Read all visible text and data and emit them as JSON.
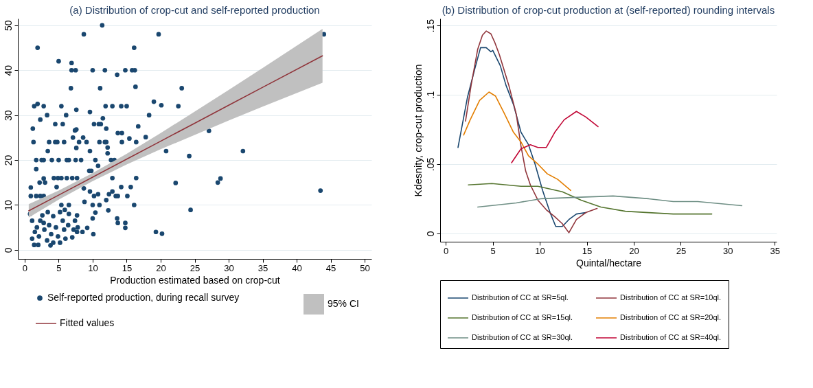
{
  "chart_data": [
    {
      "type": "scatter",
      "title": "(a) Distribution of crop-cut and self-reported production",
      "xlabel": "Production estimated based on crop-cut",
      "xlim": [
        -1,
        51
      ],
      "xticks": [
        0,
        5,
        10,
        15,
        20,
        25,
        30,
        35,
        40,
        45,
        50
      ],
      "ylim": [
        -2,
        51.5
      ],
      "yticks": [
        0,
        10,
        20,
        30,
        40,
        50
      ],
      "grid": "y",
      "legend": "bottom",
      "series": [
        {
          "name": "Self-reported production, during recall survey",
          "color": "#1a476f",
          "marker": "circle",
          "x": [
            1.9,
            8.7,
            11.4,
            19.7,
            5.0,
            6.9,
            6.9,
            7.5,
            10,
            11.8,
            14.8,
            15.8,
            16.2,
            13.6,
            16.1,
            6.8,
            11.1,
            16.3,
            23.1,
            1.9,
            1.4,
            2.8,
            5.4,
            11.9,
            12.9,
            14.2,
            15,
            19,
            20.1,
            22.6,
            2.3,
            3.3,
            6.1,
            7.6,
            9.6,
            11.5,
            18.3,
            1.2,
            1.3,
            4.5,
            5.6,
            7.4,
            7.6,
            10.2,
            10.9,
            11.2,
            12,
            13.7,
            14.3,
            16.7,
            17.8,
            20.8,
            3.6,
            4.5,
            4.8,
            5.8,
            7.1,
            8,
            8.6,
            9.1,
            11,
            11.8,
            12,
            14.3,
            15.4,
            16.4,
            12.2,
            12.2,
            3.4,
            9.6,
            1.7,
            2.5,
            2.8,
            1.7,
            4,
            5,
            6.2,
            6.5,
            7.5,
            8.3,
            10.4,
            10.8,
            12.7,
            13.2,
            9.5,
            9.8,
            7.6,
            2.8,
            3,
            2.2,
            4.3,
            4.9,
            5.4,
            6.2,
            7,
            7.7,
            12.9,
            16.4,
            22.2,
            0.9,
            0.9,
            1.7,
            2.3,
            2.8,
            4.7,
            8.7,
            9.6,
            10.2,
            10.8,
            12,
            12.4,
            12.9,
            13.4,
            13.7,
            14.2,
            15.1,
            15.6,
            16.1,
            11,
            5.4,
            6.5,
            8.8,
            10,
            12.3,
            10.4,
            10,
            13.6,
            13.7,
            14.8,
            14.8,
            10.1,
            19.3,
            20.2,
            9.2,
            8.5,
            0.8,
            1.1,
            1.5,
            1.1,
            1.4,
            2,
            1.8,
            2.3,
            2.6,
            2.9,
            3.3,
            3.9,
            3.6,
            4.2,
            4.6,
            4.9,
            3.8,
            5.6,
            5.8,
            5.2,
            6,
            6.4,
            6.5,
            7.2,
            7.4,
            7,
            7.7,
            7.8,
            7.7,
            3.4,
            5.2,
            2.1,
            2.8,
            4.2,
            5.9,
            44,
            27.1,
            24.2,
            32.1,
            28.4,
            28.8,
            24.4,
            43.5
          ],
          "values": [
            45,
            48,
            50,
            48,
            42,
            41.6,
            40,
            40,
            40,
            40,
            40,
            40,
            40,
            39,
            45,
            36,
            36,
            36.3,
            36,
            32.5,
            32,
            32,
            32,
            32,
            32,
            32,
            32,
            33,
            32.2,
            32,
            29,
            30,
            30,
            31.2,
            30.7,
            29.3,
            30,
            27,
            24,
            28,
            28,
            26.6,
            26.8,
            28,
            28,
            28,
            27,
            26,
            26,
            27.5,
            25.1,
            22,
            24,
            24,
            24,
            24,
            25,
            24,
            25,
            24,
            24,
            24,
            24,
            24,
            24.8,
            24,
            21.5,
            22.8,
            22,
            22,
            20,
            20,
            20,
            18,
            20,
            20,
            20,
            20,
            20,
            20,
            20,
            18.7,
            20,
            20,
            17.6,
            17.6,
            22.7,
            15.9,
            15,
            15,
            16,
            16,
            16,
            16,
            16,
            16,
            16,
            16,
            14.9,
            13.9,
            12,
            12,
            12,
            12,
            14,
            13.7,
            13,
            12,
            12.4,
            11.1,
            12.4,
            13,
            12,
            12,
            14,
            12,
            14,
            10,
            10,
            10,
            10,
            10.7,
            10,
            8.8,
            8.3,
            7,
            7,
            6,
            6,
            4.9,
            3.5,
            4,
            3.6,
            4.9,
            4,
            8,
            6.5,
            4,
            2.5,
            1.1,
            1.1,
            5,
            6.5,
            7.7,
            4.5,
            2.1,
            3.5,
            5.5,
            7.5,
            5,
            3,
            1,
            6.5,
            4.5,
            1.6,
            2.5,
            5.5,
            8,
            4.5,
            6.5,
            2.8,
            7.7,
            5,
            4,
            8.4,
            8.4,
            3,
            6,
            1.6,
            8.9,
            48,
            26.5,
            20.9,
            22,
            15,
            15.9,
            8.9,
            13.2
          ]
        },
        {
          "name": "Fitted values",
          "type": "line",
          "color": "#90353b",
          "marker": "none",
          "x": [
            0.6,
            5,
            10,
            15,
            20,
            25,
            30,
            35,
            43.8
          ],
          "values": [
            8.7,
            12.2,
            16.2,
            20.2,
            24.2,
            28.2,
            32.2,
            36.2,
            43.2
          ],
          "lower": [
            7.2,
            11.2,
            15.3,
            19.0,
            22.4,
            25.6,
            28.8,
            31.9,
            37.2
          ],
          "upper": [
            10.2,
            13.2,
            17.1,
            21.4,
            26.0,
            30.8,
            35.6,
            40.5,
            49.2
          ]
        }
      ],
      "annotations": [
        "95% CI"
      ]
    },
    {
      "type": "line",
      "title": "(b) Distribution of crop-cut production at (self-reported) rounding intervals",
      "xlabel": "Quintal/hectare",
      "ylabel": "Kdesnity, crop-cut production",
      "xlim": [
        -0.6,
        35.2
      ],
      "xticks": [
        0,
        5,
        10,
        15,
        20,
        25,
        30,
        35
      ],
      "ylim": [
        -0.006,
        0.155
      ],
      "yticks": [
        {
          "value": 0,
          "label": "0"
        },
        {
          "value": 0.05,
          "label": ".05"
        },
        {
          "value": 0.1,
          "label": ".1"
        },
        {
          "value": 0.15,
          "label": ".15"
        }
      ],
      "grid": "y",
      "legend": "bottom",
      "line_style": "solid",
      "series": [
        {
          "name": "Distribution of CC at SR=5ql.",
          "color": "#1a476f",
          "x": [
            1.3,
            2.3,
            3.1,
            3.7,
            4.3,
            4.8,
            5.0,
            5.8,
            6.4,
            7.2,
            8.0,
            8.8,
            9.5,
            10.3,
            11.1,
            11.7,
            12.4,
            13.1,
            13.9,
            14.9
          ],
          "values": [
            0.062,
            0.098,
            0.119,
            0.134,
            0.134,
            0.131,
            0.132,
            0.121,
            0.107,
            0.093,
            0.073,
            0.064,
            0.05,
            0.031,
            0.015,
            0.005,
            0.005,
            0.01,
            0.014,
            0.015
          ]
        },
        {
          "name": "Distribution of CC at SR=10ql.",
          "color": "#90353b",
          "x": [
            2.1,
            2.7,
            3.4,
            3.9,
            4.3,
            4.8,
            5.2,
            5.7,
            6.7,
            7.5,
            8.0,
            8.5,
            9.0,
            9.8,
            10.7,
            11.6,
            12.4,
            13.1,
            13.9,
            14.9,
            16.1
          ],
          "values": [
            0.081,
            0.107,
            0.133,
            0.143,
            0.146,
            0.144,
            0.138,
            0.129,
            0.107,
            0.086,
            0.063,
            0.045,
            0.035,
            0.024,
            0.017,
            0.012,
            0.007,
            0.0005,
            0.01,
            0.015,
            0.018
          ]
        },
        {
          "name": "Distribution of CC at SR=15ql.",
          "color": "#55752f",
          "x": [
            2.4,
            4.9,
            8.0,
            9.8,
            12.4,
            14.4,
            16.5,
            19.1,
            21.6,
            24.2,
            28.3
          ],
          "values": [
            0.035,
            0.036,
            0.034,
            0.034,
            0.03,
            0.024,
            0.019,
            0.016,
            0.015,
            0.014,
            0.014
          ]
        },
        {
          "name": "Distribution of CC at SR=20ql.",
          "color": "#e37e00",
          "x": [
            1.9,
            2.6,
            3.6,
            4.6,
            5.3,
            6.2,
            7.2,
            8.0,
            8.8,
            9.8,
            10.8,
            11.9,
            13.3
          ],
          "values": [
            0.071,
            0.082,
            0.096,
            0.102,
            0.099,
            0.087,
            0.073,
            0.066,
            0.056,
            0.05,
            0.043,
            0.039,
            0.031
          ]
        },
        {
          "name": "Distribution of CC at SR=30ql.",
          "color": "#6e8e84",
          "x": [
            3.4,
            7.5,
            10.1,
            13.9,
            17.8,
            21.6,
            24.2,
            26.8,
            31.5
          ],
          "values": [
            0.019,
            0.022,
            0.025,
            0.026,
            0.027,
            0.025,
            0.023,
            0.023,
            0.02
          ]
        },
        {
          "name": "Distribution of CC at SR=40ql.",
          "color": "#c10534",
          "x": [
            7.0,
            8.0,
            9.0,
            9.8,
            10.7,
            11.6,
            12.6,
            13.9,
            14.9,
            16.2
          ],
          "values": [
            0.051,
            0.061,
            0.064,
            0.062,
            0.062,
            0.073,
            0.082,
            0.088,
            0.084,
            0.077
          ]
        }
      ]
    }
  ]
}
